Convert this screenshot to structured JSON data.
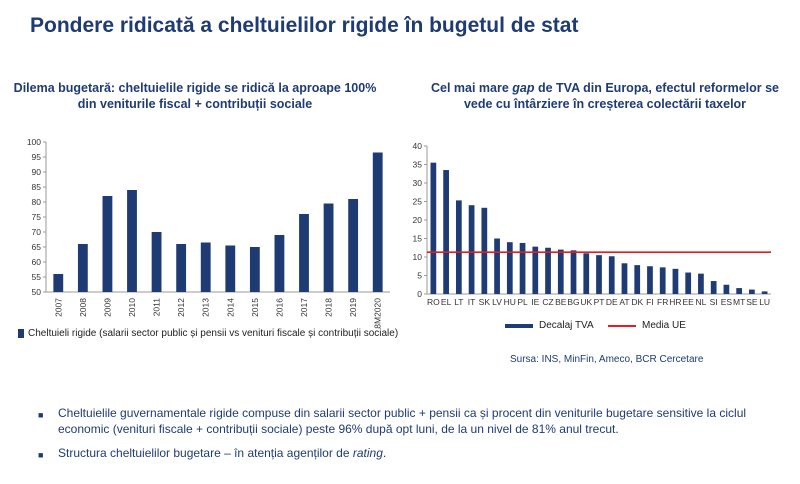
{
  "title": "Pondere ridicată a cheltuielilor rigide în bugetul de stat",
  "colors": {
    "bar": "#1f3b73",
    "avg_line": "#e02020",
    "text": "#1f3b73"
  },
  "chart_data": [
    {
      "type": "bar",
      "title": "Dilema bugetară: cheltuielile rigide se ridică la aproape 100% din veniturile fiscal + contribuții sociale",
      "categories": [
        "2007",
        "2008",
        "2009",
        "2010",
        "2011",
        "2012",
        "2013",
        "2014",
        "2015",
        "2016",
        "2017",
        "2018",
        "2019",
        "8M2020"
      ],
      "series": [
        {
          "name": "Cheltuieli rigide (salarii sector public și pensii vs venituri fiscale și contribuții sociale)",
          "values": [
            56,
            66,
            82,
            84,
            70,
            66,
            66.5,
            65.5,
            65,
            69,
            76,
            79.5,
            81,
            96.5
          ]
        }
      ],
      "ylim": [
        50,
        100
      ],
      "yticks": [
        50,
        55,
        60,
        65,
        70,
        75,
        80,
        85,
        90,
        95,
        100
      ],
      "legend": "bottom"
    },
    {
      "type": "bar",
      "title_pre": "Cel mai mare ",
      "title_em": "gap",
      "title_post": " de TVA din Europa, efectul reformelor se vede cu întârziere în creșterea colectării taxelor",
      "categories": [
        "RO",
        "EL",
        "LT",
        "IT",
        "SK",
        "LV",
        "HU",
        "PL",
        "IE",
        "CZ",
        "BE",
        "BG",
        "UK",
        "PT",
        "DE",
        "AT",
        "DK",
        "FI",
        "FR",
        "HR",
        "EE",
        "NL",
        "SI",
        "ES",
        "MT",
        "SE",
        "LU"
      ],
      "series": [
        {
          "name": "Decalaj TVA",
          "values": [
            35.5,
            33.5,
            25.3,
            24,
            23.3,
            15,
            14,
            13.8,
            12.8,
            12.5,
            12,
            11.8,
            11,
            10.5,
            10.2,
            8.3,
            7.8,
            7.5,
            7.2,
            6.8,
            5.8,
            5.5,
            3.5,
            2.5,
            1.6,
            1.2,
            0.7
          ]
        }
      ],
      "reference_line": {
        "name": "Media UE",
        "value": 11.3
      },
      "ylim": [
        0,
        40
      ],
      "yticks": [
        0,
        5,
        10,
        15,
        20,
        25,
        30,
        35,
        40
      ],
      "legend": "bottom"
    }
  ],
  "source": "Sursa: INS, MinFin, Ameco, BCR Cercetare",
  "bullets": {
    "b1": "Cheltuielile guvernamentale rigide compuse din salarii sector public + pensii ca și procent din veniturile bugetare sensitive la ciclul economic (venituri fiscale + contribuții sociale) peste 96% după opt luni, de la un nivel de 81% anul trecut.",
    "b2_pre": "Structura cheltuielilor bugetare – în atenția agenților de ",
    "b2_em": "rating",
    "b2_post": ".",
    "mark": "■"
  }
}
